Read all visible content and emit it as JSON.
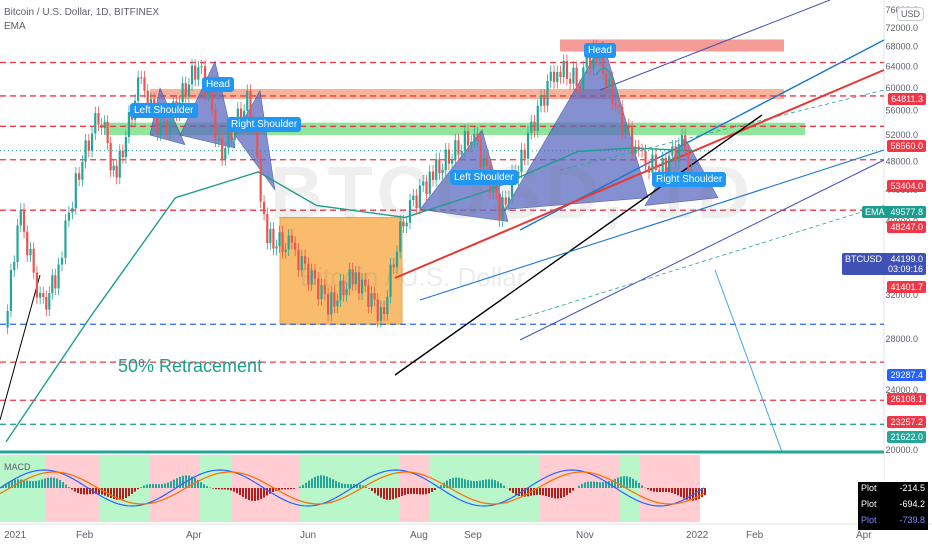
{
  "header": {
    "title": "Bitcoin / U.S. Dollar, 1D, BITFINEX",
    "indicator": "EMA",
    "currency": "USD"
  },
  "watermark": {
    "symbol": "BTCUSD, 1D",
    "name": "Bitcoin / U.S. Dollar"
  },
  "annotations": {
    "head_1": "Head",
    "left_shoulder_1": "Left Shoulder",
    "right_shoulder_1": "Right Shoulder",
    "head_2": "Head",
    "left_shoulder_2": "Left Shoulder",
    "right_shoulder_2": "Right Shoulder",
    "retracement": "50% Retracement"
  },
  "price_tags": [
    {
      "label": "64811.3",
      "value": 64811.3,
      "color": "#f23645"
    },
    {
      "label": "58560.0",
      "value": 58560.0,
      "color": "#f23645"
    },
    {
      "label": "53404.0",
      "value": 53404.0,
      "color": "#f23645"
    },
    {
      "label": "48247.0",
      "value": 48247.0,
      "color": "#f23645"
    },
    {
      "label": "41401.7",
      "value": 41401.7,
      "color": "#f23645"
    },
    {
      "label": "29287.4",
      "value": 29287.4,
      "color": "#2962ff"
    },
    {
      "label": "26108.1",
      "value": 26108.1,
      "color": "#f23645"
    },
    {
      "label": "23257.2",
      "value": 23257.2,
      "color": "#f23645"
    },
    {
      "label": "21622.0",
      "value": 21622.0,
      "color": "#26a69a"
    }
  ],
  "ema_tag": {
    "name": "EMA",
    "value": "49577.8"
  },
  "btc_tag": {
    "name": "BTCUSD",
    "value": "44199.0",
    "countdown": "03:09:16"
  },
  "macd": {
    "name": "MACD",
    "plots": [
      {
        "label": "Plot",
        "value": "-214.5"
      },
      {
        "label": "Plot",
        "value": "-694.2"
      },
      {
        "label": "Plot",
        "value": "-739.8"
      }
    ]
  },
  "chart_data": {
    "type": "line",
    "title": "Bitcoin / U.S. Dollar, 1D, BITFINEX",
    "x_axis": [
      "2021",
      "Feb",
      "Apr",
      "Jun",
      "Aug",
      "Sep",
      "Nov",
      "2022",
      "Feb",
      "Apr"
    ],
    "y_axis_ticks": [
      76000,
      72000,
      68000,
      64000,
      60000,
      56000,
      52000,
      48000,
      44000,
      40000,
      36000,
      32000,
      28000,
      24000,
      20000
    ],
    "ylim": [
      20000,
      76000
    ],
    "scale": "log",
    "series": [
      {
        "name": "BTCUSD",
        "x": [
          "2021-01-01",
          "2021-01-08",
          "2021-01-20",
          "2021-01-28",
          "2021-02-08",
          "2021-02-20",
          "2021-02-28",
          "2021-03-13",
          "2021-03-25",
          "2021-04-14",
          "2021-04-25",
          "2021-05-10",
          "2021-05-19",
          "2021-06-01",
          "2021-06-22",
          "2021-07-05",
          "2021-07-20",
          "2021-08-01",
          "2021-08-15",
          "2021-09-06",
          "2021-09-21",
          "2021-10-01",
          "2021-10-20",
          "2021-11-01",
          "2021-11-10",
          "2021-11-20",
          "2021-12-04",
          "2021-12-15",
          "2021-12-27",
          "2022-01-01"
        ],
        "values": [
          29000,
          41000,
          30500,
          34000,
          46000,
          56000,
          45000,
          61000,
          52000,
          64800,
          49000,
          58000,
          38000,
          37000,
          31000,
          34000,
          30000,
          41000,
          46000,
          52000,
          41000,
          48000,
          64000,
          61000,
          68000,
          57000,
          48000,
          47000,
          51000,
          44199
        ]
      },
      {
        "name": "EMA",
        "x": [
          "2021-01-01",
          "2021-02-15",
          "2021-04-01",
          "2021-05-15",
          "2021-06-15",
          "2021-08-01",
          "2021-09-15",
          "2021-11-01",
          "2021-12-01",
          "2022-01-01"
        ],
        "values": [
          20500,
          30000,
          43000,
          46500,
          42000,
          40500,
          44000,
          49500,
          50000,
          49577.8
        ]
      }
    ],
    "levels": [
      64811.3,
      58560.0,
      53404.0,
      48247.0,
      41401.7,
      29287.4,
      26108.1,
      23257.2,
      21622.0
    ],
    "zones": [
      {
        "from": 67000,
        "to": 69500,
        "color": "#f28b82"
      },
      {
        "from": 58000,
        "to": 59800,
        "color": "#f6a58a"
      },
      {
        "from": 52000,
        "to": 54000,
        "color": "#7ee08a"
      }
    ]
  }
}
